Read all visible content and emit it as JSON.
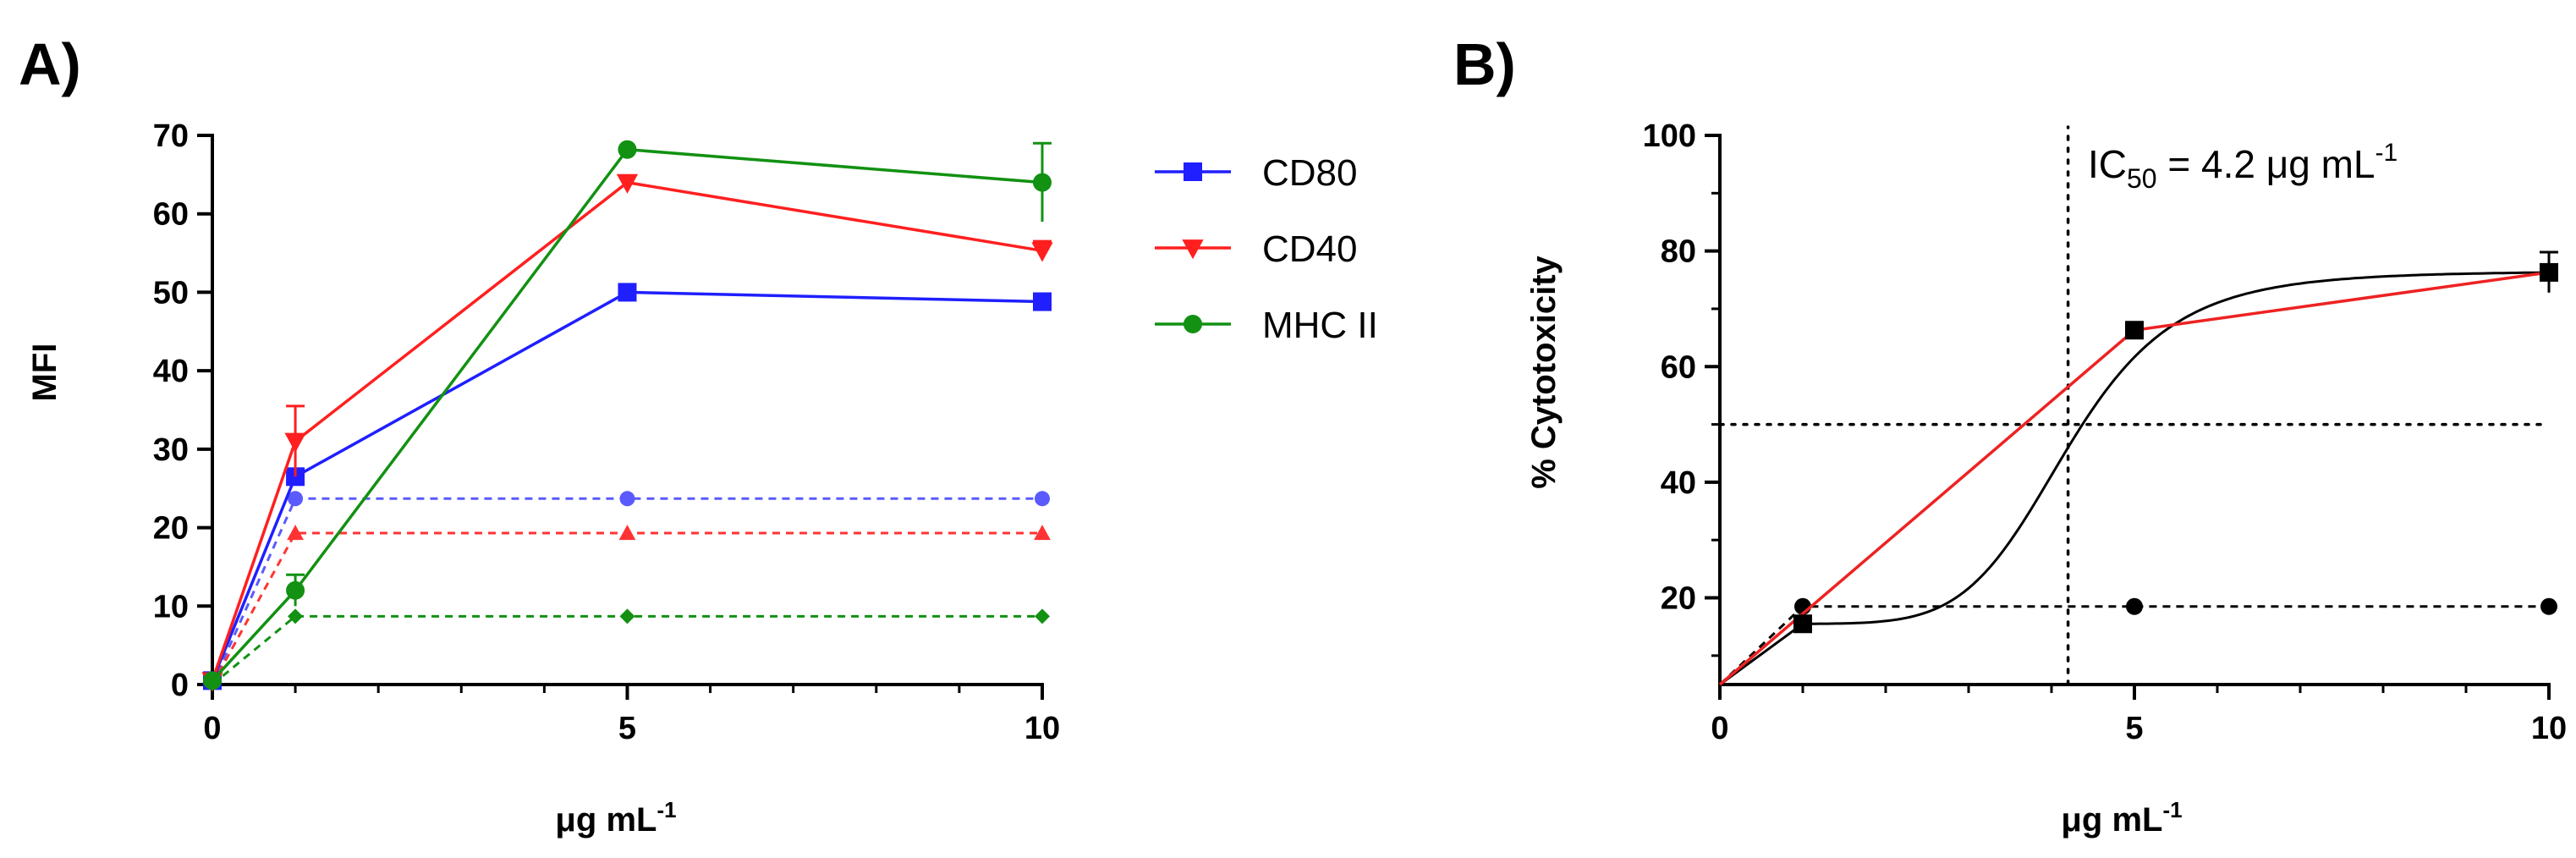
{
  "chart_data": [
    {
      "panel": "A)",
      "type": "line",
      "xlabel_main": "μg mL",
      "xlabel_sup": "-1",
      "ylabel": "MFI",
      "xlim": [
        0,
        10
      ],
      "ylim": [
        0,
        70
      ],
      "xticks": [
        0,
        5,
        10
      ],
      "yticks": [
        0,
        10,
        20,
        30,
        40,
        50,
        60,
        70
      ],
      "series": [
        {
          "name": "CD80",
          "color": "#1f1fff",
          "marker": "square",
          "x": [
            0,
            1,
            5,
            10
          ],
          "y": [
            0.5,
            26.5,
            50,
            48.8
          ],
          "yerr": [
            0,
            0,
            0,
            1
          ]
        },
        {
          "name": "CD40",
          "color": "#ff1f1f",
          "marker": "triangle-down",
          "x": [
            0,
            1,
            5,
            10
          ],
          "y": [
            0.5,
            31,
            64,
            55.3
          ],
          "yerr": [
            0,
            4.5,
            0,
            1.2
          ]
        },
        {
          "name": "MHC II",
          "color": "#129112",
          "marker": "circle",
          "x": [
            0,
            1,
            5,
            10
          ],
          "y": [
            0.5,
            12,
            68.2,
            64
          ],
          "yerr": [
            0,
            2,
            0,
            5
          ]
        }
      ],
      "baselines": [
        {
          "name": "CD80 baseline",
          "color": "#5a5aff",
          "marker": "circle",
          "x": [
            0,
            1,
            5,
            10
          ],
          "y": [
            0,
            23.7,
            23.7,
            23.7
          ]
        },
        {
          "name": "CD40 baseline",
          "color": "#ff3333",
          "marker": "triangle-up",
          "x": [
            0,
            1,
            5,
            10
          ],
          "y": [
            0,
            19.3,
            19.3,
            19.3
          ]
        },
        {
          "name": "MHC II baseline",
          "color": "#129112",
          "marker": "diamond",
          "x": [
            0,
            1,
            5,
            10
          ],
          "y": [
            0,
            8.7,
            8.7,
            8.7
          ]
        }
      ],
      "legend": [
        "CD80",
        "CD40",
        "MHC II"
      ]
    },
    {
      "panel": "B)",
      "type": "line",
      "xlabel_main": "μg mL",
      "xlabel_sup": "-1",
      "ylabel": "% Cytotoxicity",
      "xlim": [
        0,
        10
      ],
      "ylim": [
        5,
        100
      ],
      "xticks": [
        0,
        5,
        10
      ],
      "yticks": [
        20,
        40,
        60,
        80,
        100
      ],
      "annotation_main": "IC",
      "annotation_sub": "50",
      "annotation_rest": " = 4.2 μg mL",
      "annotation_sup": "-1",
      "ic50_x": 4.2,
      "ic50_y": 50,
      "data": {
        "name": "Cytotoxicity",
        "color": "#000000",
        "marker": "square",
        "x": [
          1,
          5,
          10
        ],
        "y": [
          15.5,
          66.3,
          76.3
        ],
        "yerr": [
          0,
          0,
          3.5
        ]
      },
      "linear_fit": {
        "name": "linear fit",
        "color": "#ee2222",
        "x": [
          0,
          5,
          10
        ],
        "y": [
          5,
          66.3,
          76.3
        ]
      },
      "sigmoid_fit": {
        "name": "sigmoidal fit",
        "color": "#000000",
        "bottom": 15.5,
        "top": 76.5,
        "ec50": 4.2,
        "hill": 6.5,
        "start_x": 0,
        "start_y": 5
      },
      "baseline": {
        "name": "baseline",
        "color": "#000000",
        "marker": "circle",
        "x": [
          0,
          1,
          5,
          10
        ],
        "y": [
          5,
          18.5,
          18.5,
          18.5
        ]
      }
    }
  ]
}
